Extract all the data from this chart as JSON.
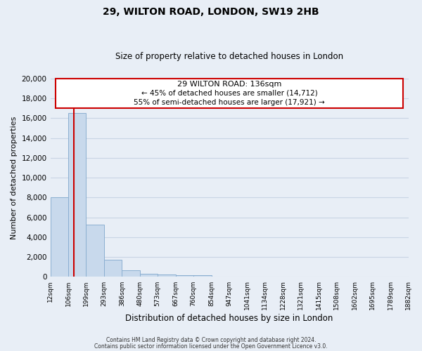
{
  "title": "29, WILTON ROAD, LONDON, SW19 2HB",
  "subtitle": "Size of property relative to detached houses in London",
  "xlabel": "Distribution of detached houses by size in London",
  "ylabel": "Number of detached properties",
  "bin_labels": [
    "12sqm",
    "106sqm",
    "199sqm",
    "293sqm",
    "386sqm",
    "480sqm",
    "573sqm",
    "667sqm",
    "760sqm",
    "854sqm",
    "947sqm",
    "1041sqm",
    "1134sqm",
    "1228sqm",
    "1321sqm",
    "1415sqm",
    "1508sqm",
    "1602sqm",
    "1695sqm",
    "1789sqm",
    "1882sqm"
  ],
  "bar_heights": [
    8000,
    16500,
    5300,
    1750,
    700,
    320,
    230,
    200,
    150,
    0,
    0,
    0,
    0,
    0,
    0,
    0,
    0,
    0,
    0,
    0
  ],
  "bar_color": "#c8d9ec",
  "bar_edge_color": "#8bafd1",
  "annotation_title": "29 WILTON ROAD: 136sqm",
  "annotation_line1": "← 45% of detached houses are smaller (14,712)",
  "annotation_line2": "55% of semi-detached houses are larger (17,921) →",
  "annotation_box_color": "#ffffff",
  "annotation_box_edge": "#cc0000",
  "ylim": [
    0,
    20000
  ],
  "yticks": [
    0,
    2000,
    4000,
    6000,
    8000,
    10000,
    12000,
    14000,
    16000,
    18000,
    20000
  ],
  "property_line_color": "#cc0000",
  "footer1": "Contains HM Land Registry data © Crown copyright and database right 2024.",
  "footer2": "Contains public sector information licensed under the Open Government Licence v3.0.",
  "grid_color": "#c8d4e4",
  "bg_color": "#e8eef6"
}
